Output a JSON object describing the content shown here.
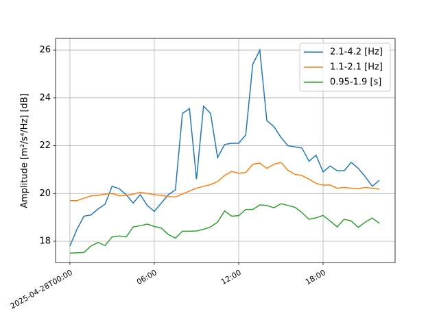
{
  "chart_data": {
    "type": "line",
    "ylabel": "Amplitude [m²/s⁴/Hz] [dB]",
    "x": [
      0,
      0.5,
      1,
      1.5,
      2,
      2.5,
      3,
      3.5,
      4,
      4.5,
      5,
      5.5,
      6,
      6.5,
      7,
      7.5,
      8,
      8.5,
      9,
      9.5,
      10,
      10.5,
      11,
      11.5,
      12,
      12.5,
      13,
      13.5,
      14,
      14.5,
      15,
      15.5,
      16,
      16.5,
      17,
      17.5,
      18,
      18.5,
      19,
      19.5,
      20,
      20.5,
      21,
      21.5,
      22
    ],
    "series": [
      {
        "name": "2.1-4.2 [Hz]",
        "color": "#1f77b4",
        "values": [
          17.8,
          18.5,
          19.05,
          19.1,
          19.35,
          19.55,
          20.3,
          20.2,
          19.95,
          19.6,
          19.95,
          19.5,
          19.25,
          19.6,
          19.95,
          20.15,
          23.35,
          23.55,
          20.6,
          23.65,
          23.35,
          21.5,
          22.05,
          22.1,
          22.1,
          22.45,
          25.4,
          26.0,
          23.05,
          22.8,
          22.35,
          22.0,
          21.95,
          21.9,
          21.35,
          21.6,
          20.9,
          21.15,
          20.95,
          20.95,
          21.3,
          21.05,
          20.7,
          20.3,
          20.55
        ]
      },
      {
        "name": "1.1-2.1 [Hz]",
        "color": "#ff7f0e",
        "values": [
          19.7,
          19.7,
          19.8,
          19.9,
          19.92,
          19.97,
          20.0,
          19.9,
          19.92,
          19.97,
          20.05,
          20.0,
          19.95,
          19.92,
          19.87,
          19.85,
          19.98,
          20.1,
          20.22,
          20.3,
          20.37,
          20.5,
          20.75,
          20.92,
          20.85,
          20.87,
          21.22,
          21.27,
          21.05,
          21.22,
          21.3,
          20.97,
          20.8,
          20.75,
          20.6,
          20.42,
          20.35,
          20.35,
          20.22,
          20.25,
          20.22,
          20.2,
          20.25,
          20.22,
          20.18
        ]
      },
      {
        "name": "0.95-1.9 [s]",
        "color": "#2ca02c",
        "values": [
          17.5,
          17.52,
          17.53,
          17.8,
          17.95,
          17.82,
          18.18,
          18.22,
          18.18,
          18.6,
          18.65,
          18.72,
          18.62,
          18.55,
          18.28,
          18.13,
          18.42,
          18.42,
          18.43,
          18.5,
          18.6,
          18.8,
          19.27,
          19.05,
          19.07,
          19.33,
          19.33,
          19.52,
          19.5,
          19.4,
          19.57,
          19.5,
          19.42,
          19.2,
          18.92,
          18.98,
          19.08,
          18.85,
          18.6,
          18.92,
          18.85,
          18.58,
          18.8,
          18.97,
          18.75
        ]
      }
    ],
    "xlim": [
      -1.02,
      23.12
    ],
    "xticks": [
      {
        "value": 0,
        "label": "2025-04-28T00:00"
      },
      {
        "value": 6,
        "label": "06:00"
      },
      {
        "value": 12,
        "label": "12:00"
      },
      {
        "value": 18,
        "label": "18:00"
      }
    ],
    "ylim": [
      17.11,
      26.49
    ],
    "yticks": [
      18,
      20,
      22,
      24,
      26
    ],
    "grid": true,
    "legend": "upper right"
  }
}
